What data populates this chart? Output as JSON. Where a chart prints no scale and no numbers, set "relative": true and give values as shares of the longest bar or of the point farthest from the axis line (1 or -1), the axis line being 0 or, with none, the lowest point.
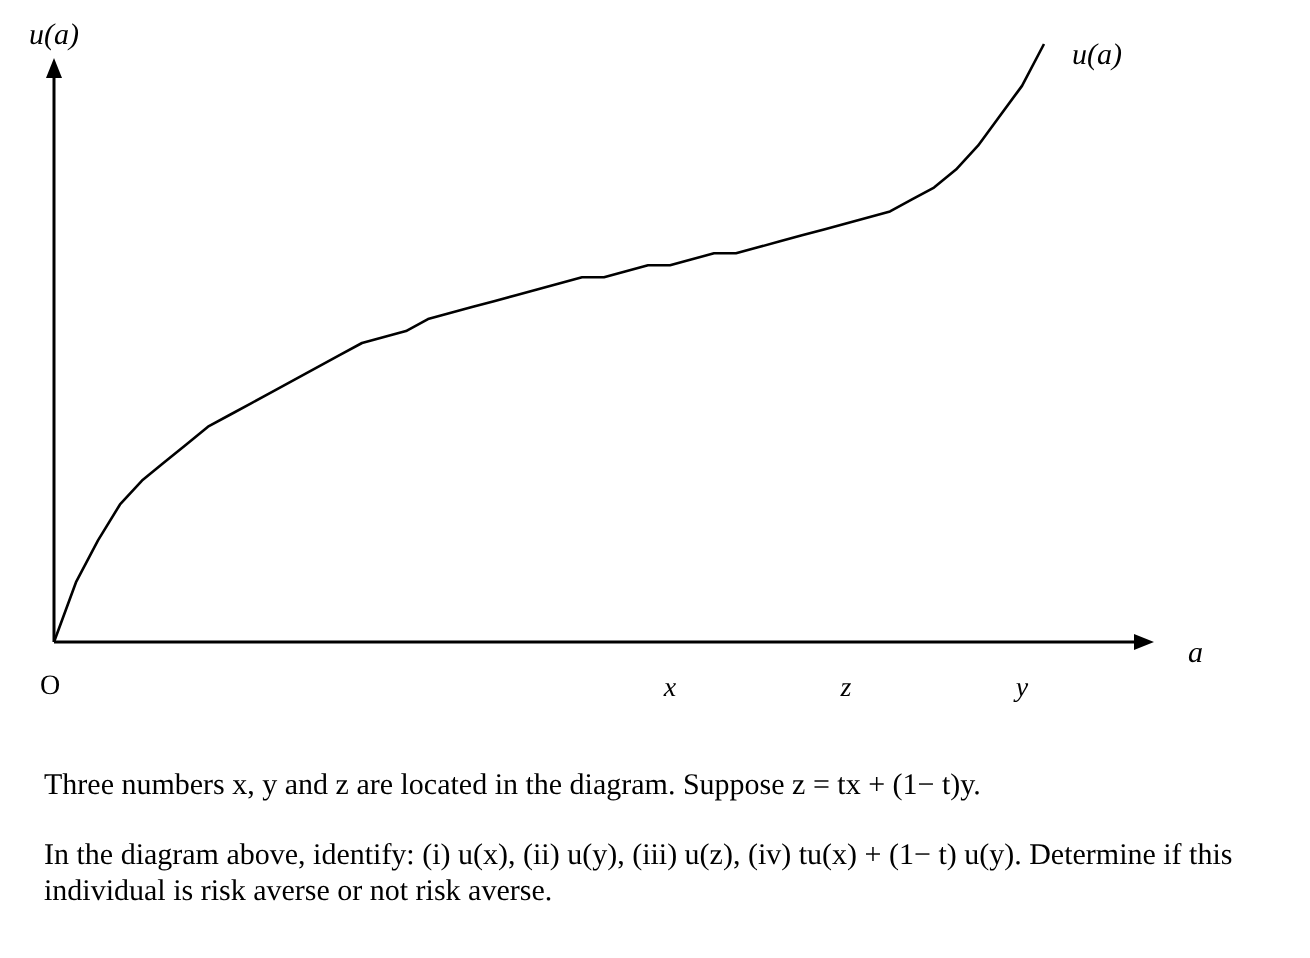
{
  "chart_data": {
    "type": "line",
    "relative": true,
    "xlabel": "a",
    "ylabel": "u(a)",
    "categories": [
      null,
      null,
      null,
      null,
      null,
      null,
      null,
      null,
      null,
      null,
      null,
      null,
      null,
      null,
      null,
      null,
      null,
      null,
      null,
      null,
      null,
      null,
      null,
      null,
      null,
      null,
      null,
      null,
      "x",
      null,
      null,
      null,
      null,
      null,
      null,
      null,
      "z",
      null,
      null,
      null,
      null,
      null,
      null,
      null,
      "y",
      null,
      null,
      null,
      null,
      null,
      null
    ],
    "series": [
      {
        "name": "u(a)",
        "color": "#000000",
        "values": [
          0,
          0.1,
          0.17,
          0.23,
          0.27,
          0.3,
          0.33,
          0.36,
          0.38,
          0.4,
          0.42,
          0.44,
          0.46,
          0.48,
          0.5,
          0.51,
          0.52,
          0.54,
          0.55,
          0.56,
          0.57,
          0.58,
          0.59,
          0.6,
          0.61,
          0.61,
          0.62,
          0.63,
          0.63,
          0.64,
          0.65,
          0.65,
          0.66,
          0.67,
          0.68,
          0.69,
          0.7,
          0.71,
          0.72,
          0.74,
          0.76,
          0.79,
          0.83,
          0.88,
          0.93,
          1,
          null,
          null,
          null,
          null,
          null
        ]
      }
    ],
    "annotations": [
      "O",
      "Three numbers x, y and z are located in the diagram. Suppose z = tx + (1− t)y.",
      "In the diagram above, identify: (i) u(x), (ii) u(y), (iii) u(z), (iv) tu(x) + (1− t) u(y). Determine if this individual is risk averse or not risk averse."
    ]
  }
}
